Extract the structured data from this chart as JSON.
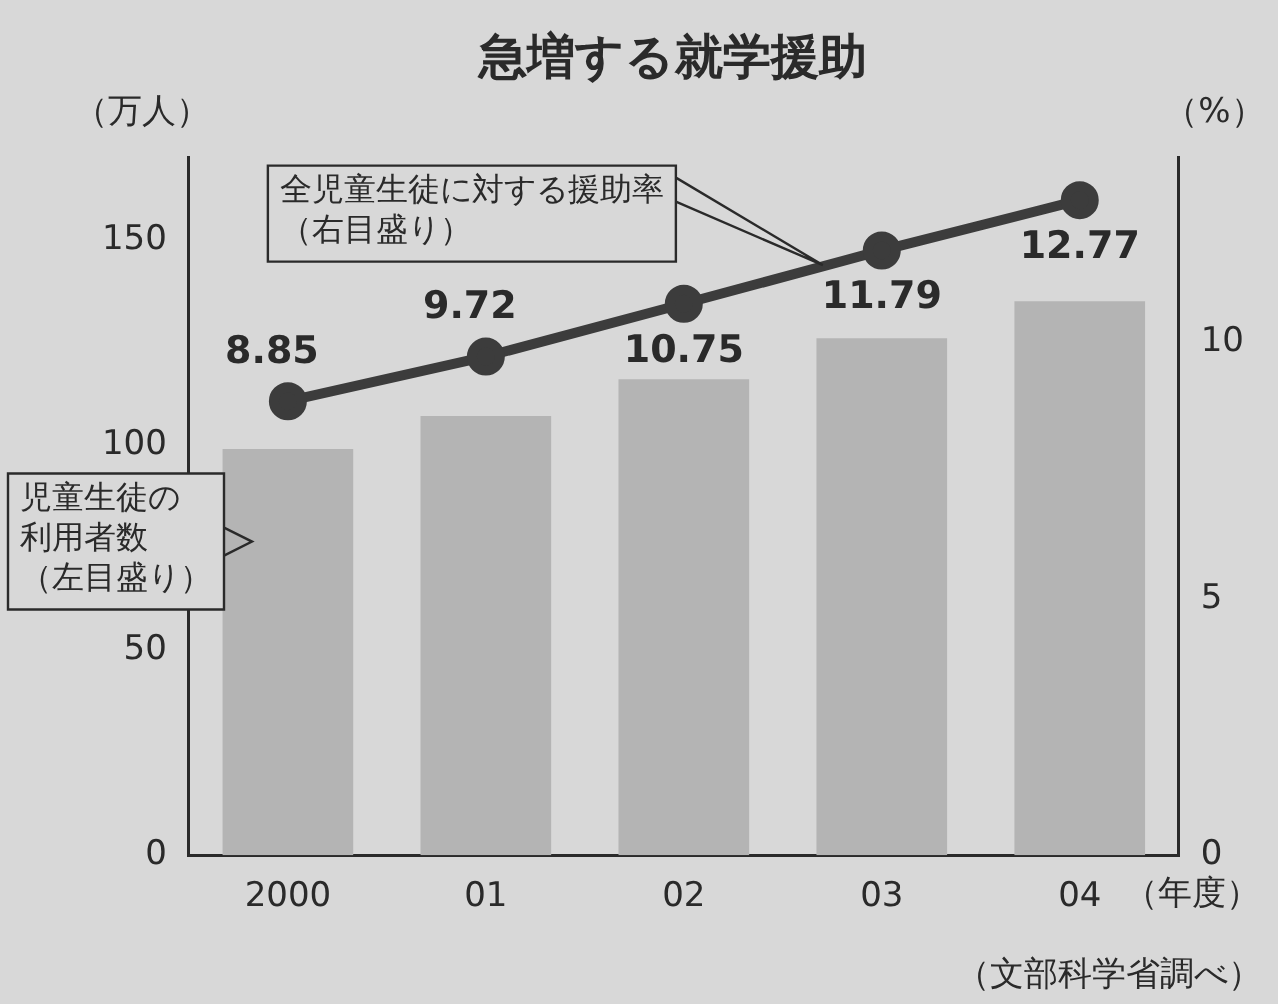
{
  "chart_data": {
    "type": "bar",
    "title": "急増する就学援助",
    "xlabel": "（年度）",
    "ylabel": "（万人）",
    "y2label": "（%）",
    "categories": [
      "2000",
      "01",
      "02",
      "03",
      "04"
    ],
    "series": [
      {
        "name": "児童生徒の利用者数（左目盛り）",
        "color": "#b4b4b4",
        "values": [
          99,
          107,
          116,
          126,
          135
        ]
      },
      {
        "name": "全児童生徒に対する援助率（右目盛り）",
        "type": "line",
        "axis": "y2",
        "color": "#3c3c3c",
        "values": [
          8.85,
          9.72,
          10.75,
          11.79,
          12.77
        ],
        "value_labels": [
          "8.85",
          "9.72",
          "10.75",
          "11.79",
          "12.77"
        ]
      }
    ],
    "ylim": [
      0,
      170
    ],
    "yticks": [
      0,
      50,
      100,
      150
    ],
    "y2lim": [
      0,
      13.6
    ],
    "y2ticks": [
      0,
      5,
      10
    ],
    "marker": "circle",
    "grid": false,
    "legend": false,
    "annotations": [
      "（文部科学省調べ）"
    ]
  }
}
